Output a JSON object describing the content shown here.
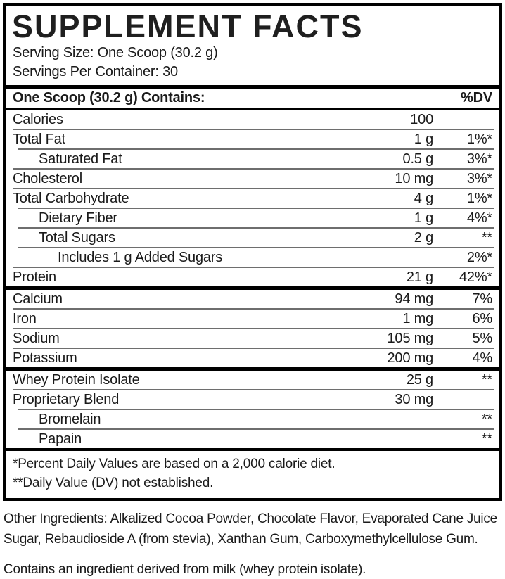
{
  "title": "SUPPLEMENT FACTS",
  "serving": {
    "size": "Serving Size: One Scoop (30.2 g)",
    "per_container": "Servings Per Container: 30"
  },
  "table": {
    "header": {
      "label": "One Scoop (30.2 g) Contains:",
      "dv": "%DV"
    },
    "groups": [
      {
        "name": "macros",
        "rows": [
          {
            "label": "Calories",
            "amount": "100",
            "dv": "",
            "indent": 0
          },
          {
            "label": "Total Fat",
            "amount": "1 g",
            "dv": "1%*",
            "indent": 0
          },
          {
            "label": "Saturated Fat",
            "amount": "0.5 g",
            "dv": "3%*",
            "indent": 1
          },
          {
            "label": "Cholesterol",
            "amount": "10 mg",
            "dv": "3%*",
            "indent": 0
          },
          {
            "label": "Total Carbohydrate",
            "amount": "4 g",
            "dv": "1%*",
            "indent": 0
          },
          {
            "label": "Dietary Fiber",
            "amount": "1 g",
            "dv": "4%*",
            "indent": 1
          },
          {
            "label": "Total Sugars",
            "amount": "2 g",
            "dv": "**",
            "indent": 1
          },
          {
            "label": "Includes 1 g Added Sugars",
            "amount": "",
            "dv": "2%*",
            "indent": 2
          },
          {
            "label": "Protein",
            "amount": "21 g",
            "dv": "42%*",
            "indent": 0
          }
        ]
      },
      {
        "name": "minerals",
        "rows": [
          {
            "label": "Calcium",
            "amount": "94 mg",
            "dv": "7%",
            "indent": 0
          },
          {
            "label": "Iron",
            "amount": "1 mg",
            "dv": "6%",
            "indent": 0
          },
          {
            "label": "Sodium",
            "amount": "105 mg",
            "dv": "5%",
            "indent": 0
          },
          {
            "label": "Potassium",
            "amount": "200 mg",
            "dv": "4%",
            "indent": 0
          }
        ]
      },
      {
        "name": "blend",
        "rows": [
          {
            "label": "Whey Protein Isolate",
            "amount": "25 g",
            "dv": "**",
            "indent": 0
          },
          {
            "label": "Proprietary Blend",
            "amount": "30 mg",
            "dv": "",
            "indent": 0
          },
          {
            "label": "Bromelain",
            "amount": "",
            "dv": "**",
            "indent": 1
          },
          {
            "label": "Papain",
            "amount": "",
            "dv": "**",
            "indent": 1
          }
        ]
      }
    ],
    "footnotes": [
      "*Percent Daily Values are based on a 2,000 calorie diet.",
      "**Daily Value (DV) not established."
    ]
  },
  "other_ingredients": "Other Ingredients: Alkalized Cocoa Powder, Chocolate Flavor, Evaporated Cane Juice Sugar, Rebaudioside A (from stevia), Xanthan Gum, Carboxymethylcellulose Gum.",
  "allergen": "Contains an ingredient derived from milk (whey protein isolate)."
}
